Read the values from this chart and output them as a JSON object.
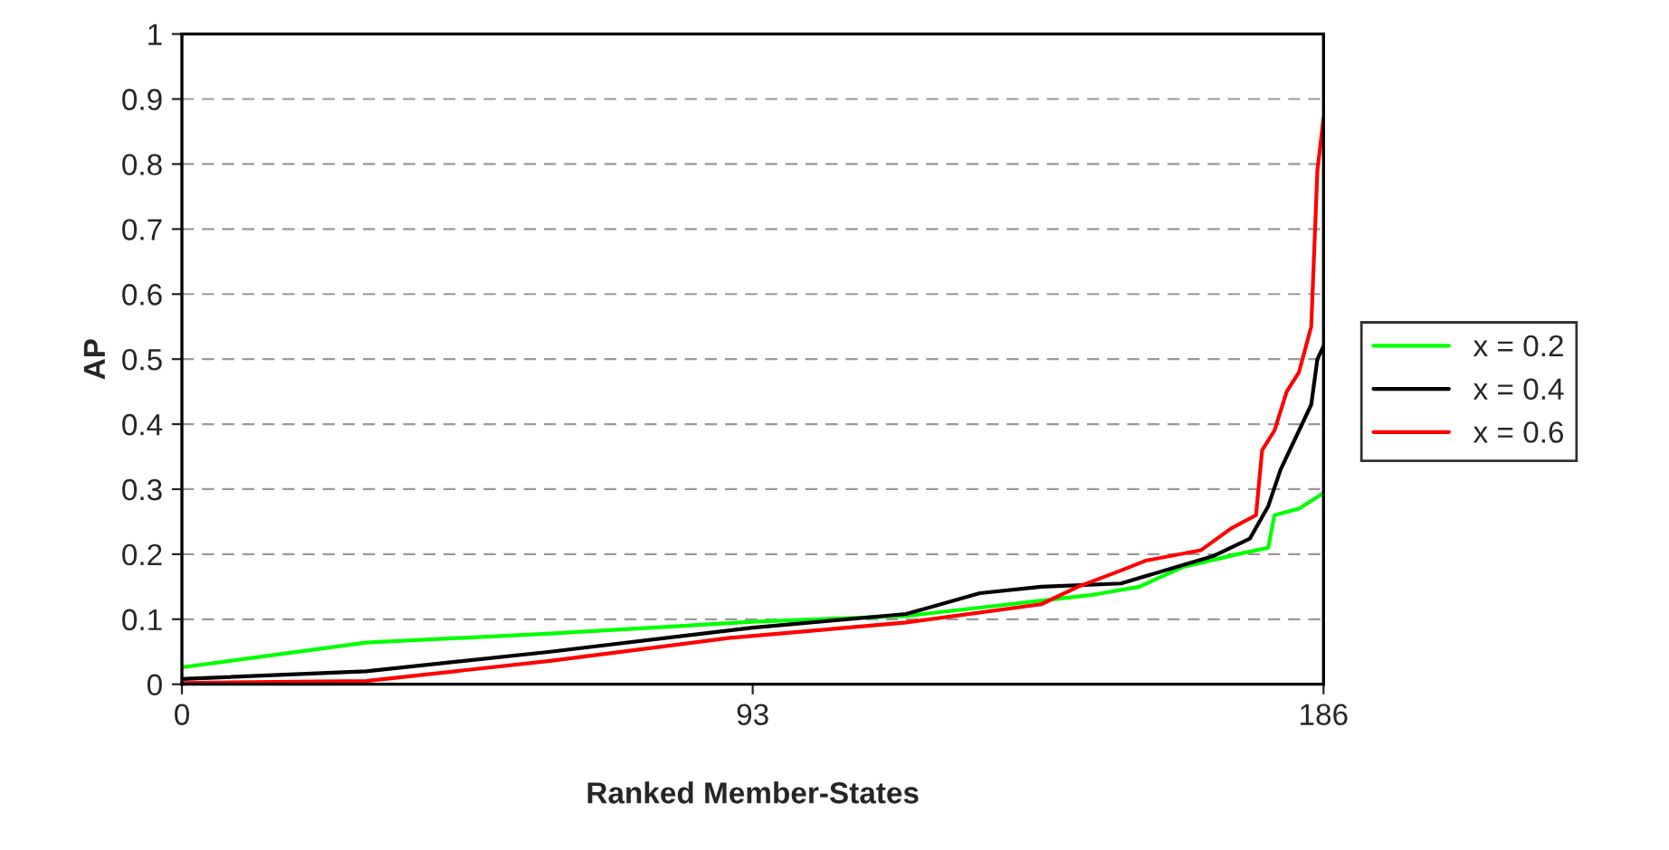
{
  "chart_data": {
    "type": "line",
    "xlabel": "Ranked Member-States",
    "ylabel": "AP",
    "xlim": [
      0,
      186
    ],
    "xticks": [
      0,
      93,
      186
    ],
    "ylim": [
      0,
      1
    ],
    "yticks": [
      0,
      0.1,
      0.2,
      0.3,
      0.4,
      0.5,
      0.6,
      0.7,
      0.8,
      0.9,
      1
    ],
    "grid": "y",
    "legend": "right",
    "series": [
      {
        "name": "x = 0.2",
        "color": "#00ff00",
        "x": [
          0,
          30,
          60,
          93,
          118,
          148,
          156,
          163,
          172,
          177,
          178,
          182,
          186
        ],
        "values": [
          0.026,
          0.064,
          0.078,
          0.096,
          0.105,
          0.137,
          0.15,
          0.18,
          0.2,
          0.21,
          0.26,
          0.27,
          0.294
        ]
      },
      {
        "name": "x = 0.4",
        "color": "#000000",
        "x": [
          0,
          30,
          60,
          93,
          118,
          130,
          140,
          153,
          168,
          174,
          177,
          179,
          182,
          184,
          185,
          186
        ],
        "values": [
          0.008,
          0.02,
          0.05,
          0.087,
          0.108,
          0.14,
          0.15,
          0.155,
          0.197,
          0.224,
          0.274,
          0.33,
          0.39,
          0.43,
          0.5,
          0.52
        ]
      },
      {
        "name": "x = 0.6",
        "color": "#ff0000",
        "x": [
          0,
          30,
          60,
          89,
          118,
          140,
          146,
          153,
          157,
          166,
          171,
          175,
          176,
          178,
          180,
          182,
          184,
          185,
          186
        ],
        "values": [
          0.002,
          0.005,
          0.036,
          0.071,
          0.095,
          0.123,
          0.15,
          0.175,
          0.19,
          0.206,
          0.24,
          0.26,
          0.36,
          0.39,
          0.45,
          0.48,
          0.55,
          0.79,
          0.87
        ]
      }
    ]
  }
}
